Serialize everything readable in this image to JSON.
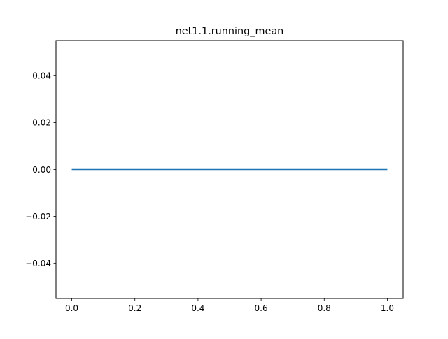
{
  "chart_data": {
    "type": "line",
    "title": "net1.1.running_mean",
    "xlabel": "",
    "ylabel": "",
    "xlim": [
      -0.05,
      1.05
    ],
    "ylim": [
      -0.055,
      0.055
    ],
    "x_ticks": [
      0.0,
      0.2,
      0.4,
      0.6,
      0.8,
      1.0
    ],
    "x_tick_labels": [
      "0.0",
      "0.2",
      "0.4",
      "0.6",
      "0.8",
      "1.0"
    ],
    "y_ticks": [
      0.04,
      0.02,
      0.0,
      -0.02,
      -0.04
    ],
    "y_tick_labels": [
      "0.04",
      "0.02",
      "0.00",
      "−0.02",
      "−0.04"
    ],
    "grid": false,
    "legend": "none",
    "series": [
      {
        "color": "#1f77b4",
        "x": [
          0.0,
          1.0
        ],
        "y": [
          0.0,
          0.0
        ]
      }
    ]
  }
}
